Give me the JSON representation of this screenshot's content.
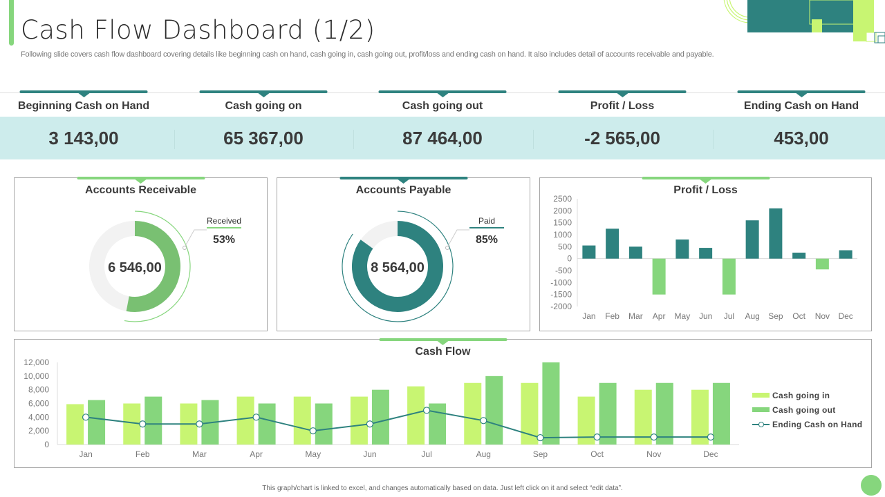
{
  "header": {
    "title": "Cash Flow Dashboard (1/2)",
    "subtitle": "Following slide covers cash flow dashboard covering details like beginning cash on hand, cash going in, cash going out, profit/loss and ending cash on hand. It also includes detail of accounts receivable and payable."
  },
  "colors": {
    "teal": "#2e827f",
    "green": "#86d67d",
    "lime": "#c8f572",
    "band": "#cdecec",
    "donut_track": "#f2f2f2",
    "receivable": "#79c072"
  },
  "kpis": [
    {
      "label": "Beginning Cash on Hand",
      "value": "3 143,00"
    },
    {
      "label": "Cash going on",
      "value": "65 367,00"
    },
    {
      "label": "Cash going out",
      "value": "87 464,00"
    },
    {
      "label": "Profit / Loss",
      "value": "-2 565,00"
    },
    {
      "label": "Ending Cash on Hand",
      "value": "453,00"
    }
  ],
  "receivable": {
    "title": "Accounts Receivable",
    "center_value": "6 546,00",
    "callout_label": "Received",
    "callout_value": "53%",
    "percent": 53
  },
  "payable": {
    "title": "Accounts Payable",
    "center_value": "8 564,00",
    "callout_label": "Paid",
    "callout_value": "85%",
    "percent": 85
  },
  "footer": {
    "note": "This graph/chart is linked to excel, and changes automatically based on data. Just left click on it and select “edit data”."
  },
  "chart_data": [
    {
      "type": "bar",
      "title": "Profit / Loss",
      "xlabel": "",
      "ylabel": "",
      "categories": [
        "Jan",
        "Feb",
        "Mar",
        "Apr",
        "May",
        "Jun",
        "Jul",
        "Aug",
        "Sep",
        "Oct",
        "Nov",
        "Dec"
      ],
      "values": [
        550,
        1250,
        500,
        -1500,
        800,
        450,
        -1500,
        1600,
        2100,
        250,
        -450,
        350
      ],
      "ylim": [
        -2000,
        2500
      ],
      "yticks": [
        2500,
        2000,
        1500,
        1000,
        500,
        0,
        -500,
        -1000,
        -1500,
        -2000
      ],
      "ytick_labels": [
        "2500",
        "2000",
        "1500",
        "1000",
        "500",
        "0",
        "-500",
        "-1000",
        "-1500",
        "-2000"
      ],
      "grid": false,
      "legend": "none"
    },
    {
      "type": "bar",
      "title": "Cash Flow",
      "xlabel": "",
      "ylabel": "",
      "categories": [
        "Jan",
        "Feb",
        "Mar",
        "Apr",
        "May",
        "Jun",
        "Jul",
        "Aug",
        "Sep",
        "Oct",
        "Nov",
        "Dec"
      ],
      "series": [
        {
          "name": "Cash going in",
          "kind": "bar",
          "values": [
            5900,
            6000,
            6000,
            7000,
            7000,
            7000,
            8500,
            9000,
            9000,
            7000,
            8000,
            8000
          ]
        },
        {
          "name": "Cash going out",
          "kind": "bar",
          "values": [
            6500,
            7000,
            6500,
            6000,
            6000,
            8000,
            6000,
            10000,
            12000,
            9000,
            9000,
            9000
          ]
        },
        {
          "name": "Ending Cash on Hand",
          "kind": "line",
          "values": [
            4000,
            3000,
            3000,
            4000,
            2000,
            3000,
            5000,
            3500,
            1000,
            1100,
            1100,
            1100
          ]
        }
      ],
      "ylim": [
        0,
        12000
      ],
      "yticks": [
        0,
        2000,
        4000,
        6000,
        8000,
        10000,
        12000
      ],
      "ytick_labels": [
        "0",
        "2,000",
        "4,000",
        "6,000",
        "8,000",
        "10,000",
        "12,000"
      ],
      "grid": false,
      "legend": "right"
    }
  ]
}
